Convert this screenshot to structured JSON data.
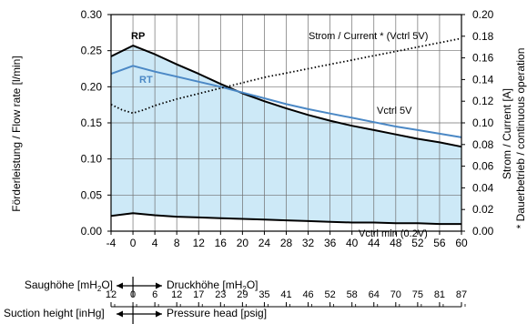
{
  "chart_data": {
    "type": "line",
    "ylabel_left": "Förderleistung / Flow rate [l/min]",
    "ylabel_right_1": "Strom / Current [A]",
    "ylabel_right_2": "* Dauerbetrieb / continuous operation",
    "xlim": [
      -4,
      60
    ],
    "ylim_left": [
      0,
      0.3
    ],
    "ylim_right": [
      0,
      0.2
    ],
    "x_ticks": [
      "-4",
      "0",
      "4",
      "8",
      "12",
      "16",
      "20",
      "24",
      "28",
      "32",
      "36",
      "40",
      "44",
      "48",
      "52",
      "56",
      "60"
    ],
    "y_ticks_left": [
      "0.00",
      "0.05",
      "0.10",
      "0.15",
      "0.20",
      "0.25",
      "0.30"
    ],
    "y_ticks_right": [
      "0.00",
      "0.02",
      "0.04",
      "0.06",
      "0.08",
      "0.10",
      "0.12",
      "0.14",
      "0.16",
      "0.18",
      "0.20"
    ],
    "grid": true,
    "series": [
      {
        "name": "RP",
        "axis": "left",
        "style": "solid-black",
        "x": [
          -4,
          0,
          4,
          8,
          12,
          16,
          20,
          24,
          28,
          32,
          36,
          40,
          44,
          48,
          52,
          56,
          60
        ],
        "y": [
          0.242,
          0.257,
          0.245,
          0.231,
          0.218,
          0.204,
          0.191,
          0.18,
          0.17,
          0.161,
          0.153,
          0.146,
          0.14,
          0.134,
          0.128,
          0.123,
          0.117
        ]
      },
      {
        "name": "RT",
        "axis": "left",
        "style": "solid-blue",
        "x": [
          -4,
          0,
          4,
          8,
          12,
          16,
          20,
          24,
          28,
          32,
          36,
          40,
          44,
          48,
          52,
          56,
          60
        ],
        "y": [
          0.218,
          0.229,
          0.221,
          0.214,
          0.207,
          0.2,
          0.192,
          0.184,
          0.176,
          0.169,
          0.163,
          0.157,
          0.151,
          0.145,
          0.14,
          0.135,
          0.13
        ]
      },
      {
        "name": "Vctrl min (0.2V)",
        "axis": "left",
        "style": "solid-black",
        "x": [
          -4,
          0,
          4,
          8,
          12,
          16,
          20,
          24,
          28,
          32,
          36,
          40,
          44,
          48,
          52,
          56,
          60
        ],
        "y": [
          0.021,
          0.025,
          0.022,
          0.02,
          0.019,
          0.018,
          0.017,
          0.016,
          0.015,
          0.014,
          0.013,
          0.012,
          0.012,
          0.011,
          0.011,
          0.01,
          0.01
        ]
      },
      {
        "name": "Strom / Current * (Vctrl 5V)",
        "axis": "right",
        "style": "dotted-black",
        "x": [
          -4,
          -2,
          0,
          2,
          4,
          8,
          12,
          16,
          20,
          24,
          28,
          32,
          36,
          40,
          44,
          48,
          52,
          56,
          60
        ],
        "y": [
          0.117,
          0.112,
          0.109,
          0.112,
          0.116,
          0.122,
          0.127,
          0.132,
          0.137,
          0.142,
          0.146,
          0.15,
          0.154,
          0.158,
          0.162,
          0.166,
          0.17,
          0.174,
          0.178
        ]
      }
    ],
    "annotations": {
      "rp": "RP",
      "rt": "RT",
      "current": "Strom / Current * (Vctrl 5V)",
      "vctrl5": "Vctrl 5V",
      "vctrlmin": "Vctrl min (0.2V)"
    },
    "fill_color": "#cde9f7",
    "rt_color": "#4b88c5",
    "scale1": {
      "left_label": "Saughöhe [mH",
      "right_label": "Druckhöhe [mH",
      "sub": "2",
      "end": "O]"
    },
    "scale2": {
      "ticks": [
        "12",
        "0",
        "6",
        "12",
        "17",
        "23",
        "29",
        "35",
        "41",
        "46",
        "52",
        "58",
        "64",
        "70",
        "75",
        "81",
        "87"
      ],
      "left_label": "Suction height [inHg]",
      "right_label": "Pressure head [psig]"
    }
  }
}
